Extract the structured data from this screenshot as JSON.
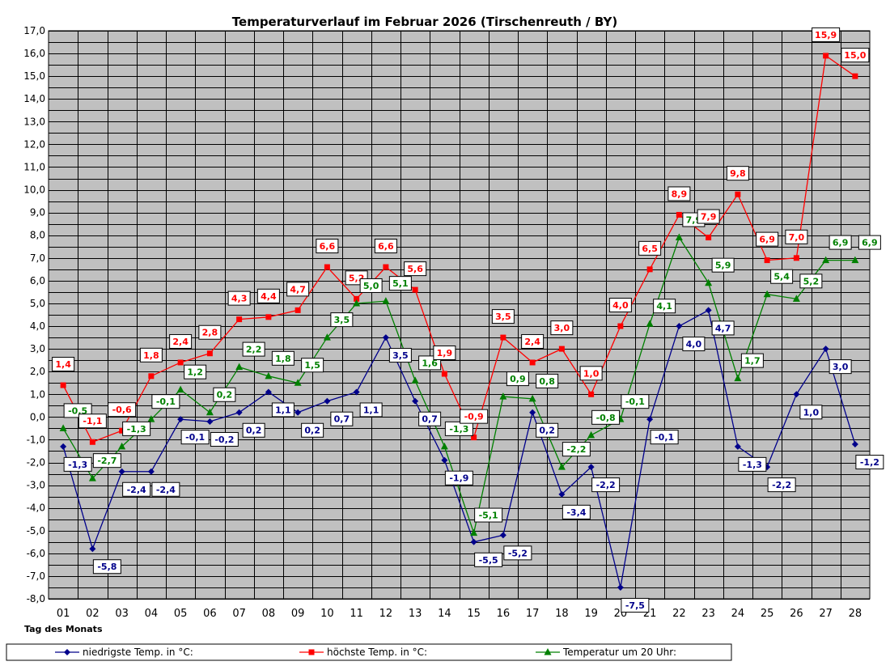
{
  "chart_data": {
    "type": "line",
    "title": "Temperaturverlauf im Februar 2026 (Tirschenreuth / BY)",
    "xlabel": "Tag des Monats",
    "ylabel": "",
    "ylim": [
      -8,
      17
    ],
    "y_major_step": 1,
    "y_minor_step": 0.5,
    "y_tick_format": "one decimal with comma",
    "grid": true,
    "plot_background": "#c0c0c0",
    "categories": [
      "01",
      "02",
      "03",
      "04",
      "05",
      "06",
      "07",
      "08",
      "09",
      "10",
      "11",
      "12",
      "13",
      "14",
      "15",
      "16",
      "17",
      "18",
      "19",
      "20",
      "21",
      "22",
      "23",
      "24",
      "25",
      "26",
      "27",
      "28"
    ],
    "legend_position": "bottom",
    "series": [
      {
        "name": "niedrigste Temp. in °C:",
        "color": "#00008b",
        "marker": "diamond",
        "values": [
          -1.3,
          -5.8,
          -2.4,
          -2.4,
          -0.1,
          -0.2,
          0.2,
          1.1,
          0.2,
          0.7,
          1.1,
          3.5,
          0.7,
          -1.9,
          -5.5,
          -5.2,
          0.2,
          -3.4,
          -2.2,
          -7.5,
          -0.1,
          4.0,
          4.7,
          -1.3,
          -2.2,
          1.0,
          3.0,
          -1.2
        ],
        "labels": [
          "-1,3",
          "-5,8",
          "-2,4",
          "-2,4",
          "-0,1",
          "-0,2",
          "0,2",
          "1,1",
          "0,2",
          "0,7",
          "1,1",
          "3,5",
          "0,7",
          "-1,9",
          "-5,5",
          "-5,2",
          "0,2",
          "-3,4",
          "-2,2",
          "-7,5",
          "-0,1",
          "4,0",
          "4,7",
          "-1,3",
          "-2,2",
          "1,0",
          "3,0",
          "-1,2"
        ]
      },
      {
        "name": "höchste Temp. in °C:",
        "color": "#ff0000",
        "marker": "square",
        "values": [
          1.4,
          -1.1,
          -0.6,
          1.8,
          2.4,
          2.8,
          4.3,
          4.4,
          4.7,
          6.6,
          5.2,
          6.6,
          5.6,
          1.9,
          -0.9,
          3.5,
          2.4,
          3.0,
          1.0,
          4.0,
          6.5,
          8.9,
          7.9,
          9.8,
          6.9,
          7.0,
          15.9,
          15.0
        ],
        "labels": [
          "1,4",
          "-1,1",
          "-0,6",
          "1,8",
          "2,4",
          "2,8",
          "4,3",
          "4,4",
          "4,7",
          "6,6",
          "5,2",
          "6,6",
          "5,6",
          "1,9",
          "-0,9",
          "3,5",
          "2,4",
          "3,0",
          "1,0",
          "4,0",
          "6,5",
          "8,9",
          "7,9",
          "9,8",
          "6,9",
          "7,0",
          "15,9",
          "15,0"
        ]
      },
      {
        "name": "Temperatur um 20 Uhr:",
        "color": "#008000",
        "marker": "triangle",
        "values": [
          -0.5,
          -2.7,
          -1.3,
          -0.1,
          1.2,
          0.2,
          2.2,
          1.8,
          1.5,
          3.5,
          5.0,
          5.1,
          1.6,
          -1.3,
          -5.1,
          0.9,
          0.8,
          -2.2,
          -0.8,
          -0.1,
          4.1,
          7.9,
          5.9,
          1.7,
          5.4,
          5.2,
          6.9,
          6.9
        ],
        "labels": [
          "-0,5",
          "-2,7",
          "-1,3",
          "-0,1",
          "1,2",
          "0,2",
          "2,2",
          "1,8",
          "1,5",
          "3,5",
          "5,0",
          "5,1",
          "1,6",
          "-1,3",
          "-5,1",
          "0,9",
          "0,8",
          "-2,2",
          "-0,8",
          "-0,1",
          "4,1",
          "7,9",
          "5,9",
          "1,7",
          "5,4",
          "5,2",
          "6,9",
          "6,9"
        ]
      }
    ]
  }
}
